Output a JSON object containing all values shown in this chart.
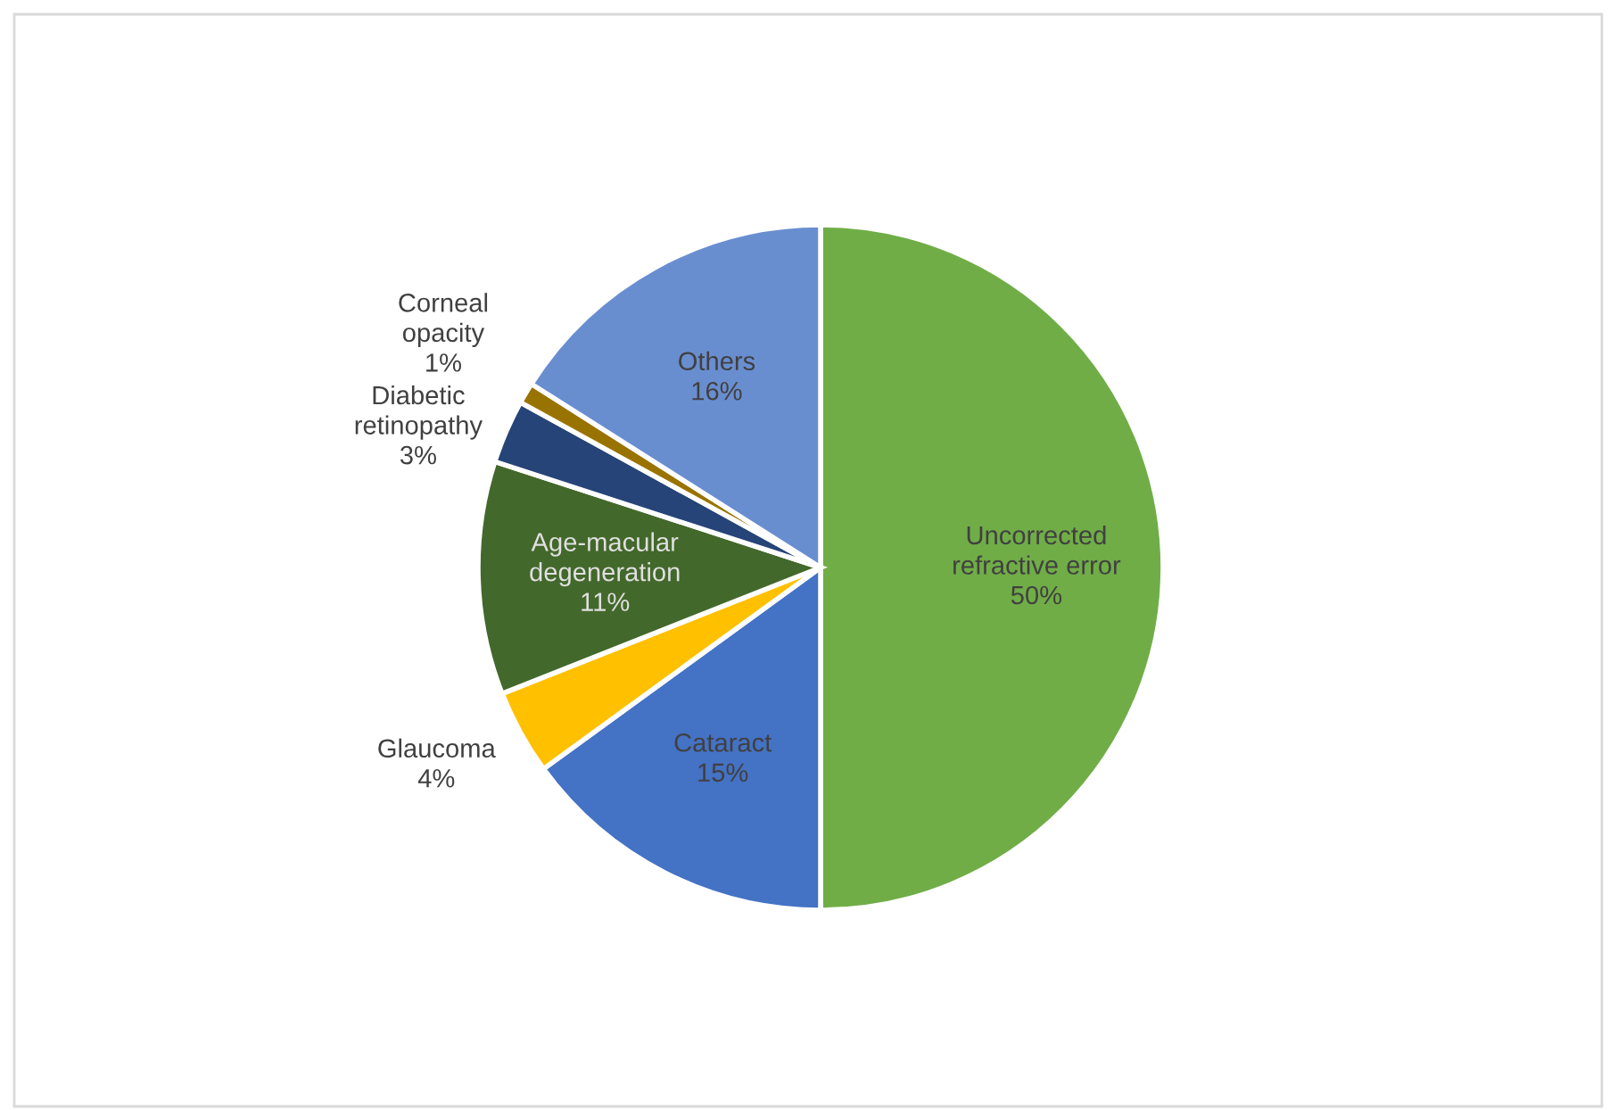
{
  "chart_data": {
    "type": "pie",
    "categories": [
      "Uncorrected\nrefractive error",
      "Cataract",
      "Glaucoma",
      "Age-macular\ndegeneration",
      "Diabetic\nretinopathy",
      "Corneal\nopacity",
      "Others"
    ],
    "values": [
      50,
      15,
      4,
      11,
      3,
      1,
      16
    ],
    "value_labels": [
      "50%",
      "15%",
      "4%",
      "11%",
      "3%",
      "1%",
      "16%"
    ],
    "colors": [
      "#70ad47",
      "#4472c4",
      "#ffc000",
      "#43682b",
      "#264478",
      "#997300",
      "#698ed0"
    ],
    "legend": false
  }
}
